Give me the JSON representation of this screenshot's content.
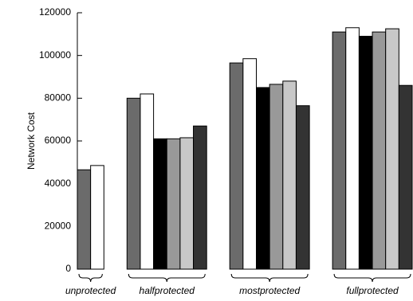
{
  "chart_data": {
    "type": "bar",
    "y_label": "Network Cost",
    "categories": [
      "unprotected",
      "halfprotected",
      "mostprotected",
      "fullprotected"
    ],
    "series": [
      {
        "color": "#6b6b6b",
        "values": [
          46500,
          80000,
          96500,
          111000
        ]
      },
      {
        "color": "#ffffff",
        "values": [
          48500,
          82000,
          98500,
          113000
        ]
      },
      {
        "color": "#000000",
        "values": [
          null,
          61000,
          85000,
          109000
        ]
      },
      {
        "color": "#999999",
        "values": [
          null,
          61000,
          86500,
          111000
        ]
      },
      {
        "color": "#c8c8c8",
        "values": [
          null,
          61500,
          88000,
          112500
        ]
      },
      {
        "color": "#333333",
        "values": [
          null,
          67000,
          76500,
          86000
        ]
      }
    ],
    "ylim": [
      0,
      120000
    ],
    "yticks": [
      0,
      20000,
      40000,
      60000,
      80000,
      100000,
      120000
    ]
  }
}
